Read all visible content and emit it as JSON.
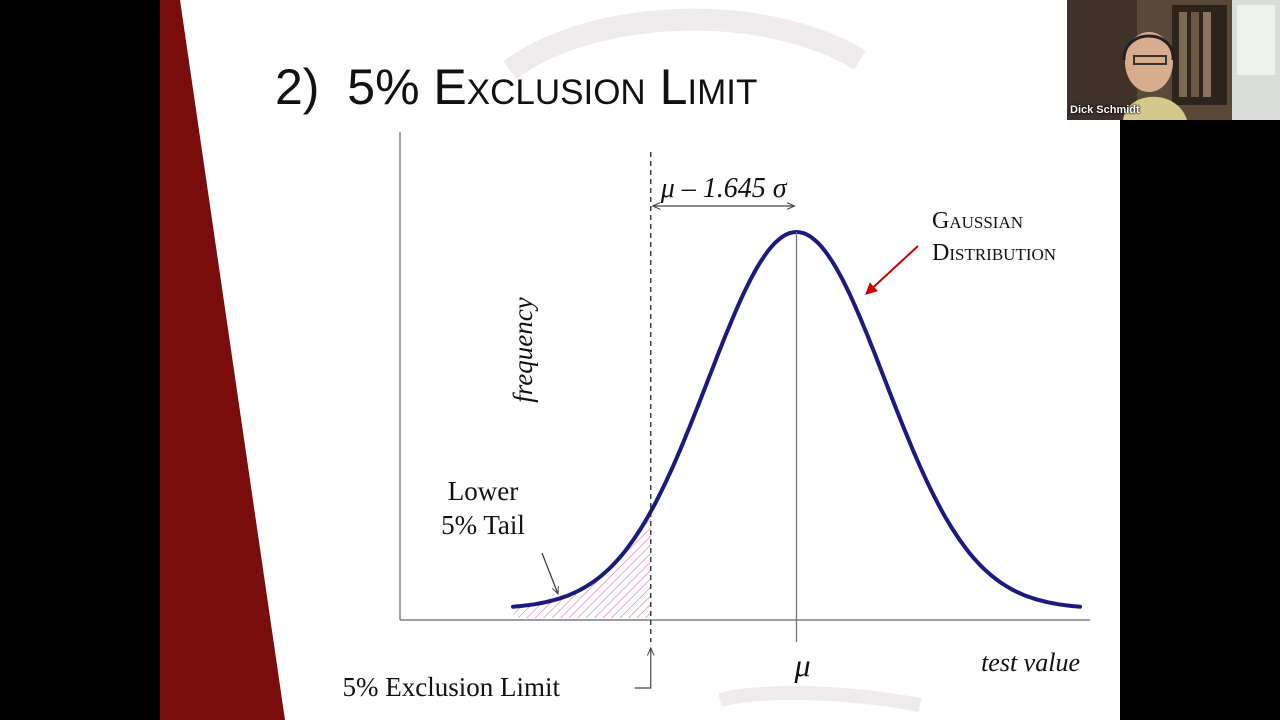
{
  "slide": {
    "title_number": "2)",
    "title_text": "5% Exclusion Limit"
  },
  "chart_data": {
    "type": "line",
    "title": "",
    "ylabel": "frequency",
    "xlabel": "test value",
    "mean_label": "μ",
    "interval_label": "μ – 1.645 σ",
    "distribution_label_line1": "Gaussian",
    "distribution_label_line2": "Distribution",
    "tail_label_line1": "Lower",
    "tail_label_line2": "5% Tail",
    "limit_label": "5% Exclusion Limit",
    "distribution": "normal",
    "mean": 0,
    "sd": 1,
    "exclusion_limit_z": -1.645,
    "x_range": [
      -3.2,
      3.2
    ],
    "grid": false,
    "colors": {
      "curve": "#1a1a80",
      "tail_hatch": "#cc66aa",
      "arrow": "#cc0000",
      "accent": "#7a0c0c"
    }
  },
  "meeting": {
    "participant_name": "Dick Schmidt"
  }
}
